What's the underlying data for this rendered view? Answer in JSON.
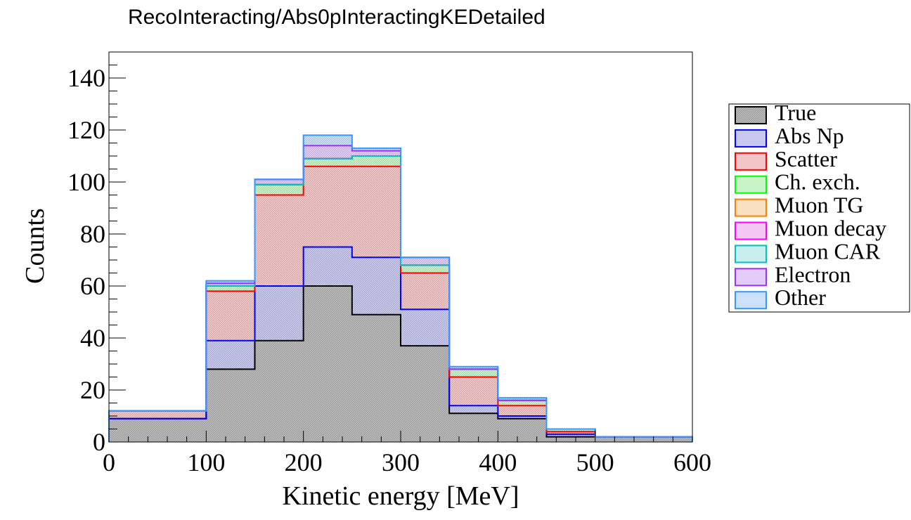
{
  "chart_data": {
    "type": "bar",
    "title": "RecoInteracting/Abs0pInteractingKEDetailed",
    "xlabel": "Kinetic energy [MeV]",
    "ylabel": "Counts",
    "xlim": [
      0,
      600
    ],
    "ylim": [
      0,
      150
    ],
    "x_ticks": [
      "0",
      "100",
      "200",
      "300",
      "400",
      "500",
      "600"
    ],
    "y_ticks": [
      "0",
      "20",
      "40",
      "60",
      "80",
      "100",
      "120",
      "140"
    ],
    "bin_edges": [
      0,
      100,
      150,
      200,
      250,
      300,
      350,
      400,
      450,
      500,
      600
    ],
    "stacked": true,
    "grid": false,
    "legend_position": "right",
    "series": [
      {
        "name": "True",
        "color": "#000000",
        "fill": "#b8b8b8",
        "values": [
          9,
          28,
          39,
          60,
          49,
          37,
          11,
          9,
          2,
          2
        ]
      },
      {
        "name": "Abs Np",
        "color": "#0000ff",
        "fill": "#c8c8ee",
        "values": [
          0,
          11,
          21,
          15,
          22,
          14,
          3,
          1,
          1,
          0
        ]
      },
      {
        "name": "Scatter",
        "color": "#ff0000",
        "fill": "#f2c6c6",
        "values": [
          3,
          19,
          35,
          31,
          35,
          14,
          11,
          4,
          1,
          0
        ]
      },
      {
        "name": "Ch. exch.",
        "color": "#00ff00",
        "fill": "#c8f4c8",
        "values": [
          0,
          2,
          4,
          3,
          4,
          3,
          3,
          2,
          1,
          0
        ]
      },
      {
        "name": "Muon TG",
        "color": "#ff8000",
        "fill": "#f8e0c0",
        "values": [
          0,
          0,
          0,
          0,
          0,
          0,
          0,
          0,
          0,
          0
        ]
      },
      {
        "name": "Muon decay",
        "color": "#ff00ff",
        "fill": "#f4c8f4",
        "values": [
          0,
          0,
          0,
          0,
          0,
          0,
          0,
          0,
          0,
          0
        ]
      },
      {
        "name": "Muon CAR",
        "color": "#00c0c0",
        "fill": "#c8eeee",
        "values": [
          0,
          0,
          0,
          0,
          0,
          0,
          0,
          0,
          0,
          0
        ]
      },
      {
        "name": "Electron",
        "color": "#9933ff",
        "fill": "#e2ccf8",
        "values": [
          0,
          1,
          2,
          5,
          2,
          3,
          0,
          0,
          0,
          0
        ]
      },
      {
        "name": "Other",
        "color": "#3399ff",
        "fill": "#cce0f8",
        "values": [
          0,
          1,
          0,
          4,
          1,
          0,
          1,
          1,
          0,
          0
        ]
      }
    ]
  }
}
